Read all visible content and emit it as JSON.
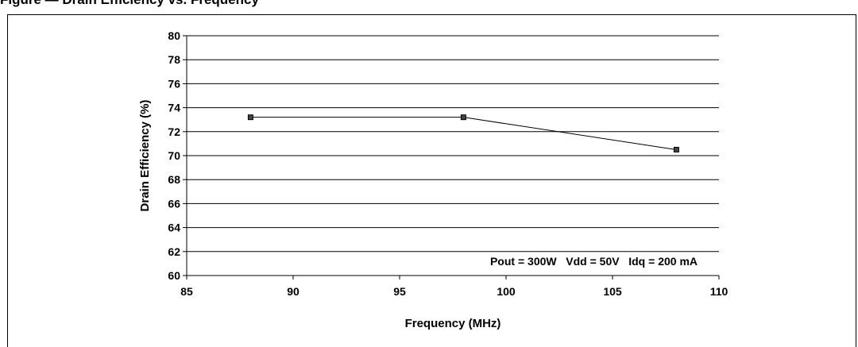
{
  "figure": {
    "title": "Figure — Drain Efficiency vs. Frequency"
  },
  "chart_data": {
    "type": "line",
    "title": "",
    "xlabel": "Frequency (MHz)",
    "ylabel": "Drain Efficiency (%)",
    "xlim": [
      85,
      110
    ],
    "ylim": [
      60,
      80
    ],
    "x_ticks": [
      85,
      90,
      95,
      100,
      105,
      110
    ],
    "y_ticks": [
      60,
      62,
      64,
      66,
      68,
      70,
      72,
      74,
      76,
      78,
      80
    ],
    "grid": "horizontal",
    "annotation": "Pout = 300W   Vdd = 50V   Idq = 200 mA",
    "series": [
      {
        "x": [
          88,
          98,
          108
        ],
        "y": [
          73.2,
          73.2,
          70.5
        ],
        "color": "#000000",
        "marker": "square"
      }
    ]
  }
}
